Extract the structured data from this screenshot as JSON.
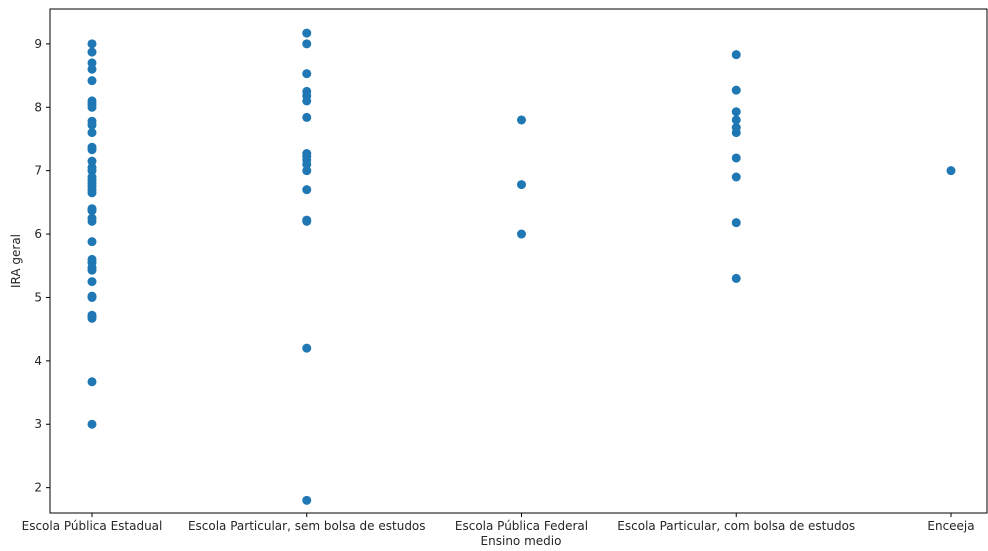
{
  "chart_data": {
    "type": "scatter",
    "title": "",
    "xlabel": "Ensino medio",
    "ylabel": "IRA geral",
    "categories": [
      "Escola Pública Estadual",
      "Escola Particular, sem bolsa de estudos",
      "Escola Pública Federal",
      "Escola Particular, com bolsa de estudos",
      "Enceeja"
    ],
    "ylim": [
      1.6,
      9.55
    ],
    "yticks": [
      2,
      3,
      4,
      5,
      6,
      7,
      8,
      9
    ],
    "grid": false,
    "color": "#1f77b4",
    "series": [
      {
        "category": "Escola Pública Estadual",
        "y": [
          9.0,
          8.87,
          8.7,
          8.6,
          8.42,
          8.1,
          8.05,
          8.0,
          7.78,
          7.72,
          7.6,
          7.37,
          7.33,
          7.15,
          7.05,
          7.0,
          6.9,
          6.85,
          6.8,
          6.75,
          6.7,
          6.65,
          6.4,
          6.37,
          6.25,
          6.2,
          5.88,
          5.6,
          5.55,
          5.47,
          5.43,
          5.25,
          5.02,
          5.0,
          4.72,
          4.7,
          4.67,
          3.67,
          3.0
        ]
      },
      {
        "category": "Escola Particular, sem bolsa de estudos",
        "y": [
          9.17,
          9.0,
          8.53,
          8.25,
          8.18,
          8.1,
          7.84,
          7.27,
          7.23,
          7.17,
          7.1,
          7.0,
          6.7,
          6.22,
          6.2,
          4.2,
          1.8
        ]
      },
      {
        "category": "Escola Pública Federal",
        "y": [
          7.8,
          6.78,
          6.0
        ]
      },
      {
        "category": "Escola Particular, com bolsa de estudos",
        "y": [
          8.83,
          8.27,
          7.93,
          7.8,
          7.68,
          7.6,
          7.2,
          6.9,
          6.18,
          5.3
        ]
      },
      {
        "category": "Enceeja",
        "y": [
          7.0
        ]
      }
    ]
  }
}
